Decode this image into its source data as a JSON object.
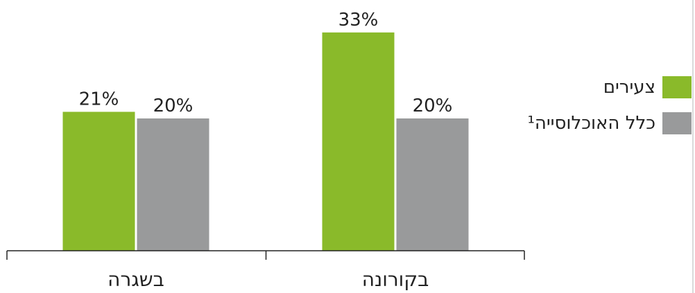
{
  "chart_data": {
    "type": "bar",
    "categories": [
      "בשגרה",
      "בקורונה"
    ],
    "series": [
      {
        "name": "צעירים",
        "color": "#8aba2a",
        "values": [
          21,
          33
        ],
        "labels": [
          "21%",
          "33%"
        ]
      },
      {
        "name": "כלל האוכלוסייה¹",
        "color": "#999a9b",
        "values": [
          20,
          20
        ],
        "labels": [
          "20%",
          "20%"
        ]
      }
    ],
    "title": "",
    "xlabel": "",
    "ylabel": "",
    "ylim": [
      0,
      35
    ],
    "grid": false,
    "legend_position": "right"
  }
}
